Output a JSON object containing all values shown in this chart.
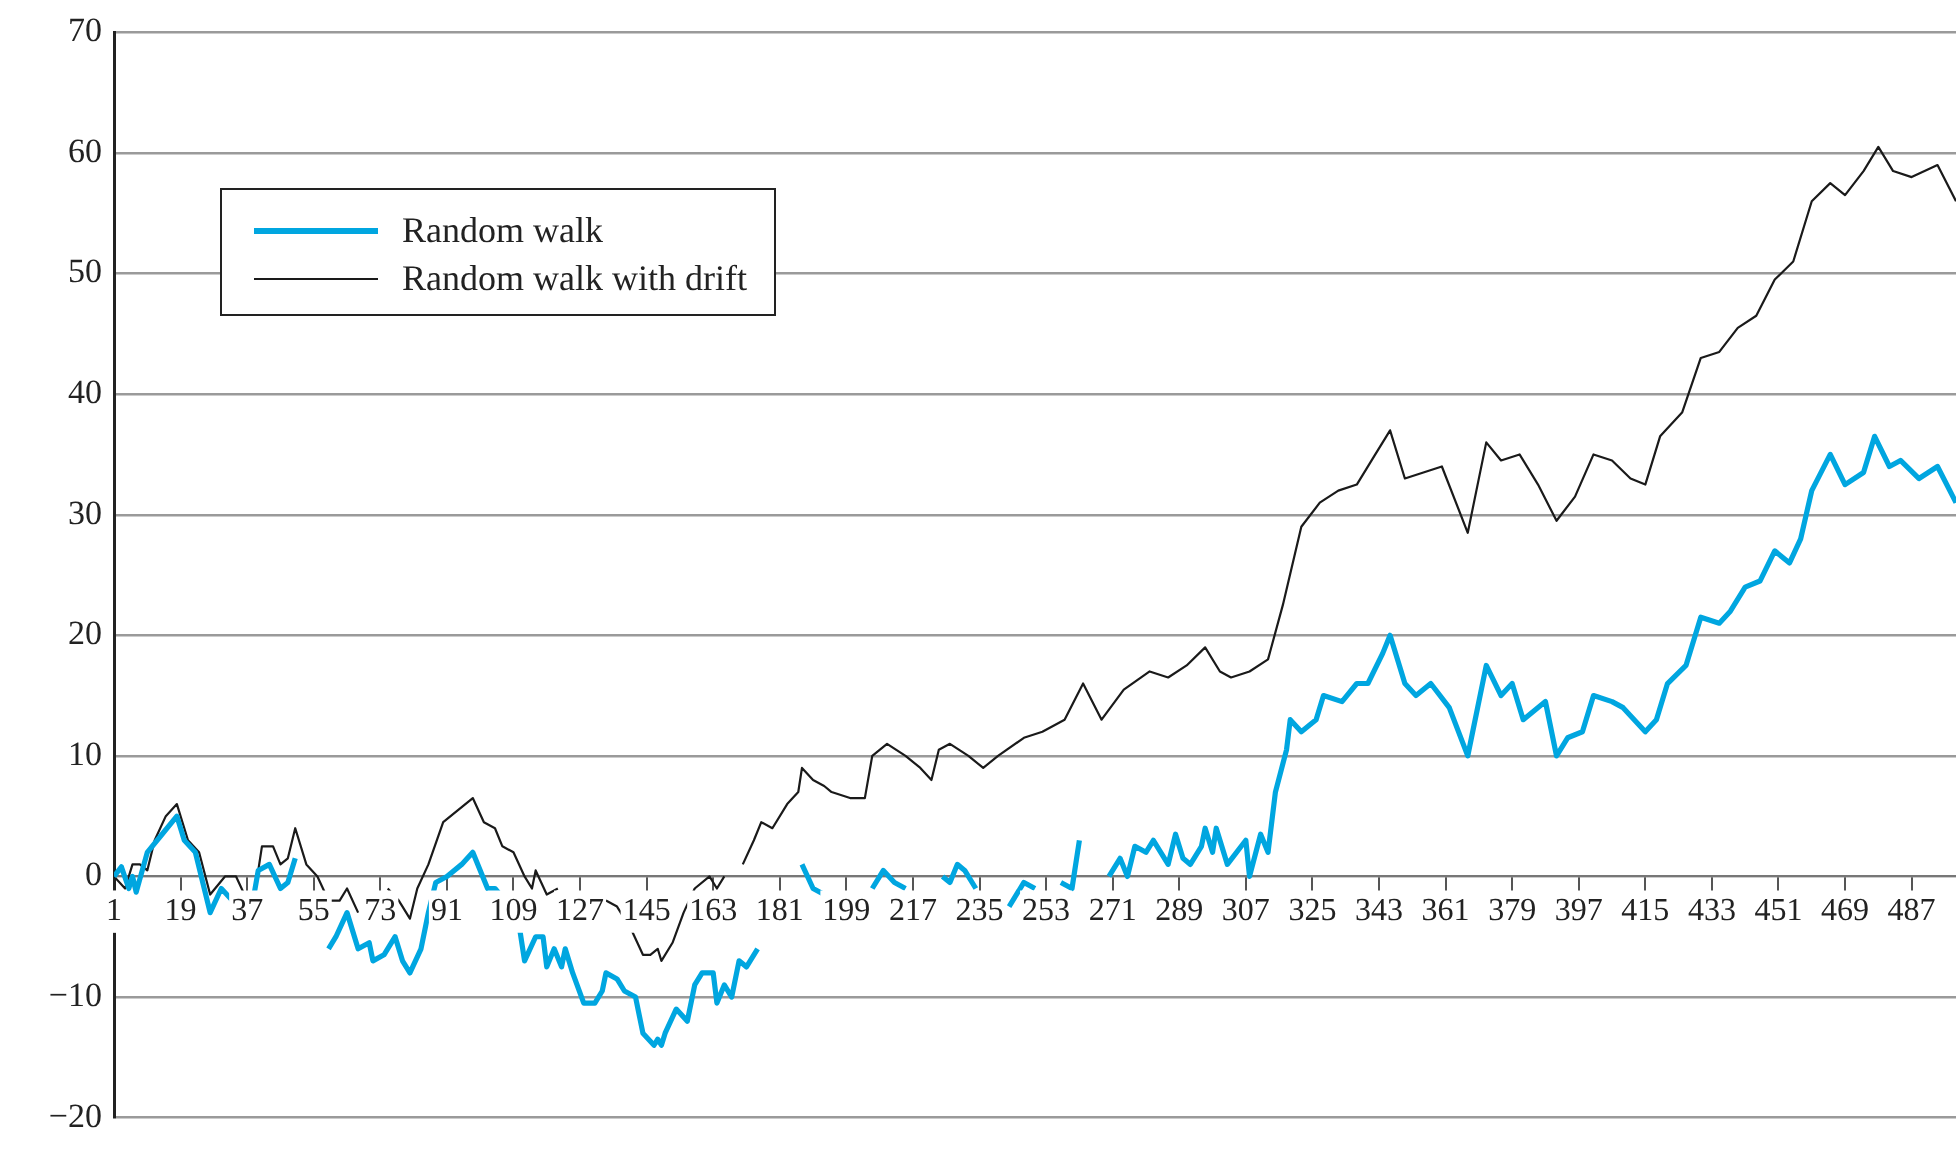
{
  "chart_data": {
    "type": "line",
    "xlim": [
      1,
      499
    ],
    "xticks": [
      1,
      19,
      37,
      55,
      73,
      91,
      109,
      127,
      145,
      163,
      181,
      199,
      217,
      235,
      253,
      271,
      289,
      307,
      325,
      343,
      361,
      379,
      397,
      415,
      433,
      451,
      469,
      487
    ],
    "ylim": [
      -20,
      70
    ],
    "yticks": [
      {
        "value": -20,
        "label": "−20"
      },
      {
        "value": -10,
        "label": "−10"
      },
      0,
      10,
      20,
      30,
      40,
      50,
      60,
      70
    ],
    "grid": "y",
    "legend": "top left",
    "marker": "none",
    "line_style": "solid",
    "series": [
      {
        "name": "Random walk",
        "color": "#00a6e0",
        "x": [
          1,
          3,
          5,
          6,
          7,
          10,
          14,
          18,
          20,
          23,
          27,
          30,
          33,
          36,
          38,
          40,
          43,
          46,
          48,
          50,
          54,
          56,
          59,
          61,
          64,
          67,
          70,
          71,
          74,
          77,
          79,
          81,
          84,
          86,
          88,
          91,
          95,
          98,
          102,
          104,
          108,
          110,
          112,
          115,
          117,
          118,
          120,
          122,
          123,
          125,
          128,
          131,
          133,
          134,
          137,
          139,
          142,
          144,
          147,
          148,
          149,
          150,
          153,
          156,
          158,
          160,
          163,
          164,
          166,
          168,
          170,
          172,
          175,
          177,
          180,
          183,
          187,
          190,
          193,
          195,
          200,
          204,
          206,
          209,
          212,
          215,
          218,
          221,
          225,
          227,
          229,
          231,
          234,
          237,
          240,
          243,
          247,
          250,
          252,
          257,
          260,
          262,
          267,
          270,
          273,
          275,
          277,
          280,
          282,
          286,
          288,
          290,
          292,
          295,
          296,
          298,
          299,
          302,
          307,
          308,
          311,
          313,
          315,
          318,
          319,
          322,
          326,
          328,
          333,
          337,
          340,
          344,
          346,
          350,
          353,
          357,
          362,
          367,
          372,
          376,
          379,
          382,
          388,
          391,
          394,
          398,
          401,
          406,
          409,
          415,
          418,
          421,
          426,
          430,
          435,
          438,
          442,
          446,
          450,
          454,
          457,
          460,
          465,
          469,
          474,
          477,
          481,
          484,
          489,
          494,
          499
        ],
        "values": [
          0,
          0.8,
          -1,
          0,
          -1.3,
          2,
          3.5,
          5,
          3,
          2,
          -3,
          -1,
          -2,
          null,
          -3,
          0.5,
          1,
          -1,
          -0.5,
          1.5,
          null,
          null,
          -6,
          -5,
          -3,
          -6,
          -5.5,
          -7,
          -6.5,
          -5,
          -7,
          -8,
          -6,
          -3,
          -0.5,
          0,
          1,
          2,
          -1,
          -1,
          -2.5,
          -3,
          -7,
          -5,
          -5,
          -7.5,
          -6,
          -7.5,
          -6,
          -8,
          -10.5,
          -10.5,
          -9.5,
          -8,
          -8.5,
          -9.5,
          -10,
          -13,
          -14,
          -13.5,
          -14,
          -13,
          -11,
          -12,
          -9,
          -8,
          -8,
          -10.5,
          -9,
          -10,
          -7,
          -7.5,
          -6,
          null,
          null,
          null,
          1,
          -1,
          -1.5,
          null,
          null,
          null,
          -1,
          0.5,
          -0.5,
          -1,
          null,
          null,
          0,
          -0.5,
          1,
          0.5,
          -1,
          null,
          null,
          -2.5,
          -0.5,
          -1,
          null,
          -0.5,
          -1,
          3,
          null,
          0,
          1.5,
          0,
          2.5,
          2,
          3,
          1,
          3.5,
          1.5,
          1,
          2.5,
          4,
          2,
          4,
          1,
          3,
          0,
          3.5,
          2,
          7,
          10.5,
          13,
          12,
          13,
          15,
          14.5,
          16,
          16,
          18.5,
          20,
          16,
          15,
          16,
          14,
          10,
          17.5,
          15,
          16,
          13,
          14.5,
          10,
          11.5,
          12,
          15,
          14.5,
          14,
          12,
          13,
          16,
          17.5,
          21.5,
          21,
          22,
          24,
          24.5,
          27,
          26,
          28,
          32,
          35,
          32.5,
          33.5,
          36.5,
          34,
          34.5,
          33,
          34,
          31
        ]
      },
      {
        "name": "Random walk with drift",
        "color": "#1a1a1a",
        "x": [
          1,
          4,
          6,
          8,
          10,
          12,
          15,
          18,
          21,
          24,
          27,
          31,
          34,
          37,
          39,
          41,
          44,
          46,
          48,
          50,
          53,
          56,
          59,
          62,
          64,
          67,
          70,
          72,
          75,
          78,
          81,
          83,
          86,
          90,
          94,
          98,
          101,
          104,
          106,
          109,
          112,
          114,
          115,
          118,
          121,
          123,
          125,
          130,
          134,
          137,
          141,
          144,
          146,
          148,
          149,
          152,
          155,
          158,
          162,
          164,
          166,
          168,
          171,
          174,
          176,
          179,
          183,
          186,
          187,
          190,
          193,
          195,
          200,
          204,
          206,
          210,
          215,
          219,
          222,
          224,
          227,
          232,
          236,
          240,
          247,
          252,
          258,
          263,
          268,
          274,
          281,
          286,
          291,
          296,
          300,
          303,
          308,
          313,
          317,
          322,
          327,
          332,
          337,
          342,
          346,
          350,
          355,
          360,
          367,
          372,
          376,
          381,
          386,
          391,
          396,
          401,
          406,
          411,
          415,
          419,
          425,
          430,
          435,
          440,
          445,
          450,
          455,
          460,
          465,
          469,
          474,
          478,
          482,
          487,
          494,
          499
        ],
        "values": [
          0,
          -1,
          1,
          1,
          0.5,
          3,
          5,
          6,
          3,
          2,
          -1.5,
          0,
          0,
          -2,
          -1.5,
          2.5,
          2.5,
          1,
          1.5,
          4,
          1,
          0,
          -2,
          -2,
          -1,
          -3,
          null,
          null,
          -1,
          -2,
          -3.5,
          -1,
          1,
          4.5,
          5.5,
          6.5,
          4.5,
          4,
          2.5,
          2,
          0,
          -1,
          0.5,
          -1.5,
          -1,
          null,
          null,
          null,
          -2,
          -2.5,
          -4.5,
          -6.5,
          -6.5,
          -6,
          -7,
          -5.5,
          -3,
          -1,
          0,
          -1,
          0,
          null,
          1,
          3,
          4.5,
          4,
          6,
          7,
          9,
          8,
          7.5,
          7,
          6.5,
          6.5,
          10,
          11,
          10,
          9,
          8,
          10.5,
          11,
          10,
          9,
          10,
          11.5,
          12,
          13,
          16,
          13,
          15.5,
          17,
          16.5,
          17.5,
          19,
          17,
          16.5,
          17,
          18,
          22.5,
          29,
          31,
          32,
          32.5,
          35,
          37,
          33,
          33.5,
          34,
          28.5,
          36,
          34.5,
          35,
          32.5,
          29.5,
          31.5,
          35,
          34.5,
          33,
          32.5,
          36.5,
          38.5,
          43,
          43.5,
          45.5,
          46.5,
          49.5,
          51,
          56,
          57.5,
          56.5,
          58.5,
          60.5,
          58.5,
          58,
          59,
          56
        ]
      }
    ]
  }
}
